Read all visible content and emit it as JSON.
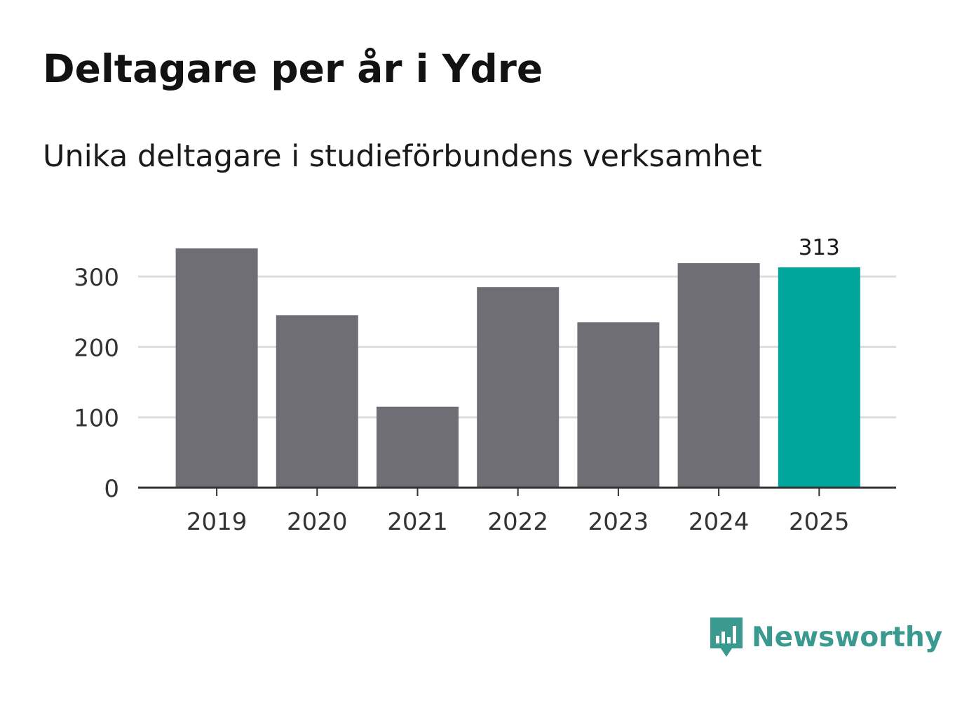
{
  "header": {
    "title": "Deltagare per år i Ydre",
    "subtitle": "Unika deltagare i studieförbundens verksamhet"
  },
  "brand": {
    "name": "Newsworthy",
    "color": "#3a9a90",
    "icon": "newsworthy-logo-icon"
  },
  "colors": {
    "bar_default": "#6f6e75",
    "bar_highlight": "#00a69c",
    "gridline": "#dddddd",
    "axis": "#333333",
    "tick_text": "#333333"
  },
  "chart_data": {
    "type": "bar",
    "title": "Deltagare per år i Ydre",
    "subtitle": "Unika deltagare i studieförbundens verksamhet",
    "xlabel": "",
    "ylabel": "",
    "categories": [
      "2019",
      "2020",
      "2021",
      "2022",
      "2023",
      "2024",
      "2025"
    ],
    "values": [
      340,
      245,
      115,
      285,
      235,
      319,
      313
    ],
    "highlight_index": 6,
    "data_labels": [
      {
        "index": 6,
        "text": "313"
      }
    ],
    "ylim": [
      0,
      340
    ],
    "yticks": [
      0,
      100,
      200,
      300
    ],
    "ytick_labels": [
      "0",
      "100",
      "200",
      "300"
    ],
    "grid": true,
    "legend": "none"
  }
}
